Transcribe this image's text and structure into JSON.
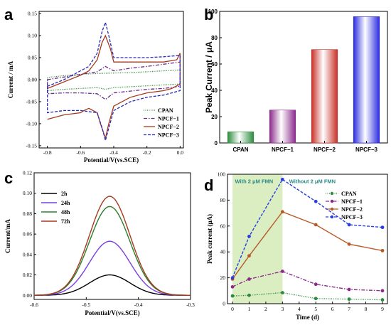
{
  "panels": {
    "a": {
      "letter": "a"
    },
    "b": {
      "letter": "b"
    },
    "c": {
      "letter": "c"
    },
    "d": {
      "letter": "d"
    }
  },
  "chart_data": [
    {
      "id": "a",
      "type": "line",
      "title": "",
      "xlabel": "Potential/V(vs.SCE)",
      "ylabel": "Current / mA",
      "xlim": [
        -0.85,
        0.02
      ],
      "ylim": [
        -0.155,
        0.155
      ],
      "xticks": [
        -0.8,
        -0.6,
        -0.4,
        -0.2,
        0.0
      ],
      "xtick_labels": [
        "-0.8",
        "-0.6",
        "-0.4",
        "-0.2",
        "0.0"
      ],
      "yticks": [
        -0.15,
        -0.1,
        -0.05,
        0.0,
        0.05,
        0.1,
        0.15
      ],
      "ytick_labels": [
        "-0.15",
        "-0.10",
        "-0.05",
        "0.00",
        "0.05",
        "0.10",
        "0.15"
      ],
      "legend_position": "bottom-right",
      "series": [
        {
          "name": "CPAN",
          "color": "#2e8b2e",
          "dash": "1,1.5",
          "x": [
            -0.8,
            -0.7,
            -0.6,
            -0.5,
            -0.4,
            -0.3,
            -0.2,
            -0.1,
            0.0,
            0.0,
            -0.1,
            -0.2,
            -0.3,
            -0.4,
            -0.45,
            -0.5,
            -0.6,
            -0.7,
            -0.8,
            -0.8
          ],
          "y": [
            0.005,
            0.009,
            0.012,
            0.014,
            0.015,
            0.016,
            0.018,
            0.02,
            0.022,
            -0.01,
            -0.012,
            -0.014,
            -0.016,
            -0.018,
            -0.022,
            -0.018,
            -0.02,
            -0.022,
            -0.025,
            0.005
          ]
        },
        {
          "name": "NPCF−1",
          "color": "#6b2a8c",
          "dash": "5,2,1.5,2",
          "x": [
            -0.8,
            -0.7,
            -0.6,
            -0.5,
            -0.45,
            -0.4,
            -0.3,
            -0.2,
            -0.1,
            0.0,
            0.0,
            -0.1,
            -0.2,
            -0.3,
            -0.4,
            -0.45,
            -0.5,
            -0.6,
            -0.7,
            -0.8,
            -0.8
          ],
          "y": [
            0.0,
            0.006,
            0.012,
            0.018,
            0.03,
            0.02,
            0.026,
            0.03,
            0.035,
            0.04,
            -0.015,
            -0.02,
            -0.022,
            -0.026,
            -0.03,
            -0.045,
            -0.032,
            -0.03,
            -0.03,
            -0.032,
            0.0
          ]
        },
        {
          "name": "NPCF−2",
          "color": "#a43a1e",
          "dash": "",
          "x": [
            -0.8,
            -0.7,
            -0.6,
            -0.55,
            -0.5,
            -0.47,
            -0.45,
            -0.42,
            -0.4,
            -0.3,
            -0.2,
            -0.1,
            -0.02,
            0.0,
            0.0,
            -0.05,
            -0.1,
            -0.2,
            -0.3,
            -0.4,
            -0.43,
            -0.45,
            -0.48,
            -0.5,
            -0.55,
            -0.58,
            -0.6,
            -0.7,
            -0.8
          ],
          "y": [
            -0.02,
            -0.005,
            0.01,
            0.02,
            0.045,
            0.085,
            0.1,
            0.07,
            0.04,
            0.04,
            0.04,
            0.04,
            0.045,
            0.06,
            -0.01,
            -0.02,
            -0.025,
            -0.03,
            -0.04,
            -0.06,
            -0.1,
            -0.133,
            -0.1,
            -0.075,
            -0.065,
            -0.07,
            -0.075,
            -0.08,
            -0.09
          ]
        },
        {
          "name": "NPCF−3",
          "color": "#2a2ab8",
          "dash": "4,2",
          "x": [
            -0.8,
            -0.7,
            -0.6,
            -0.55,
            -0.5,
            -0.47,
            -0.45,
            -0.43,
            -0.4,
            -0.3,
            -0.2,
            -0.1,
            0.0,
            0.0,
            -0.1,
            -0.2,
            -0.3,
            -0.4,
            -0.43,
            -0.45,
            -0.47,
            -0.5,
            -0.6,
            -0.7,
            -0.8,
            -0.8
          ],
          "y": [
            -0.015,
            0.0,
            0.02,
            0.03,
            0.06,
            0.11,
            0.13,
            0.1,
            0.05,
            0.05,
            0.05,
            0.052,
            0.055,
            -0.025,
            -0.035,
            -0.04,
            -0.05,
            -0.07,
            -0.11,
            -0.138,
            -0.11,
            -0.075,
            -0.07,
            -0.07,
            -0.075,
            -0.015
          ]
        }
      ]
    },
    {
      "id": "b",
      "type": "bar",
      "title": "",
      "xlabel": "",
      "ylabel": "Peak Current / μA",
      "ylim": [
        0,
        100
      ],
      "yticks": [
        0,
        20,
        40,
        60,
        80,
        100
      ],
      "categories": [
        "CPAN",
        "NPCF−1",
        "NPCF−2",
        "NPCF−3"
      ],
      "values": [
        8.5,
        25,
        71,
        96
      ],
      "colors": [
        "#2e8b3e",
        "#8b2a8c",
        "#c83028",
        "#2a2ae0"
      ]
    },
    {
      "id": "c",
      "type": "line",
      "title": "",
      "xlabel": "Potential/V(vs.SCE)",
      "ylabel": "Current/mA",
      "xlim": [
        -0.6,
        -0.3
      ],
      "ylim": [
        -0.004,
        0.12
      ],
      "xticks": [
        -0.6,
        -0.5,
        -0.4,
        -0.3
      ],
      "xtick_labels": [
        "-0.6",
        "-0.5",
        "-0.4",
        "-0.3"
      ],
      "yticks": [
        0.0,
        0.02,
        0.04,
        0.06,
        0.08,
        0.1,
        0.12
      ],
      "ytick_labels": [
        "0.00",
        "0.02",
        "0.04",
        "0.06",
        "0.08",
        "0.10",
        "0.12"
      ],
      "legend_position": "top-left",
      "peak_x": -0.455,
      "width": 0.055,
      "series": [
        {
          "name": "2h",
          "color": "#000000",
          "peak": 0.02,
          "base": 0.0
        },
        {
          "name": "24h",
          "color": "#7a3fe0",
          "peak": 0.053,
          "base": 0.0
        },
        {
          "name": "48h",
          "color": "#2e7d2e",
          "peak": 0.087,
          "base": 0.0
        },
        {
          "name": "72h",
          "color": "#a43a1e",
          "peak": 0.097,
          "base": 0.0
        }
      ]
    },
    {
      "id": "d",
      "type": "line",
      "title": "",
      "xlabel": "Time (d)",
      "ylabel": "Peak current (μA)",
      "xlim": [
        -0.3,
        9.3
      ],
      "ylim": [
        0,
        100
      ],
      "xticks": [
        0,
        1,
        2,
        3,
        4,
        5,
        6,
        7,
        8,
        9
      ],
      "yticks": [
        0,
        20,
        40,
        60,
        80,
        100
      ],
      "shaded_region": {
        "x0": 0,
        "x1": 3,
        "color": "#dbeec2"
      },
      "annotations": [
        {
          "text": "With 2 μM FMN",
          "x": 0.15,
          "y": 93,
          "color": "#2a8a8a"
        },
        {
          "text": "Without 2 μM FMN",
          "x": 3.4,
          "y": 93,
          "color": "#2a8a8a"
        }
      ],
      "legend_position": "top-right",
      "x": [
        0,
        1,
        3,
        5,
        7,
        9
      ],
      "series": [
        {
          "name": "CPAN",
          "color": "#2e8b3e",
          "dash": "1,1.5",
          "values": [
            6,
            6.5,
            8.5,
            4,
            3.5,
            3
          ]
        },
        {
          "name": "NPCF−1",
          "color": "#8b2a8c",
          "dash": "5,2,1.5,2",
          "values": [
            13,
            19,
            25,
            15,
            11,
            10
          ]
        },
        {
          "name": "NPCF−2",
          "color": "#b85a2a",
          "dash": "",
          "values": [
            19,
            37,
            71,
            61,
            46,
            41
          ]
        },
        {
          "name": "NPCF−3",
          "color": "#2a3ee0",
          "dash": "4,2",
          "values": [
            20,
            52,
            96,
            79,
            61,
            59
          ]
        }
      ]
    }
  ]
}
